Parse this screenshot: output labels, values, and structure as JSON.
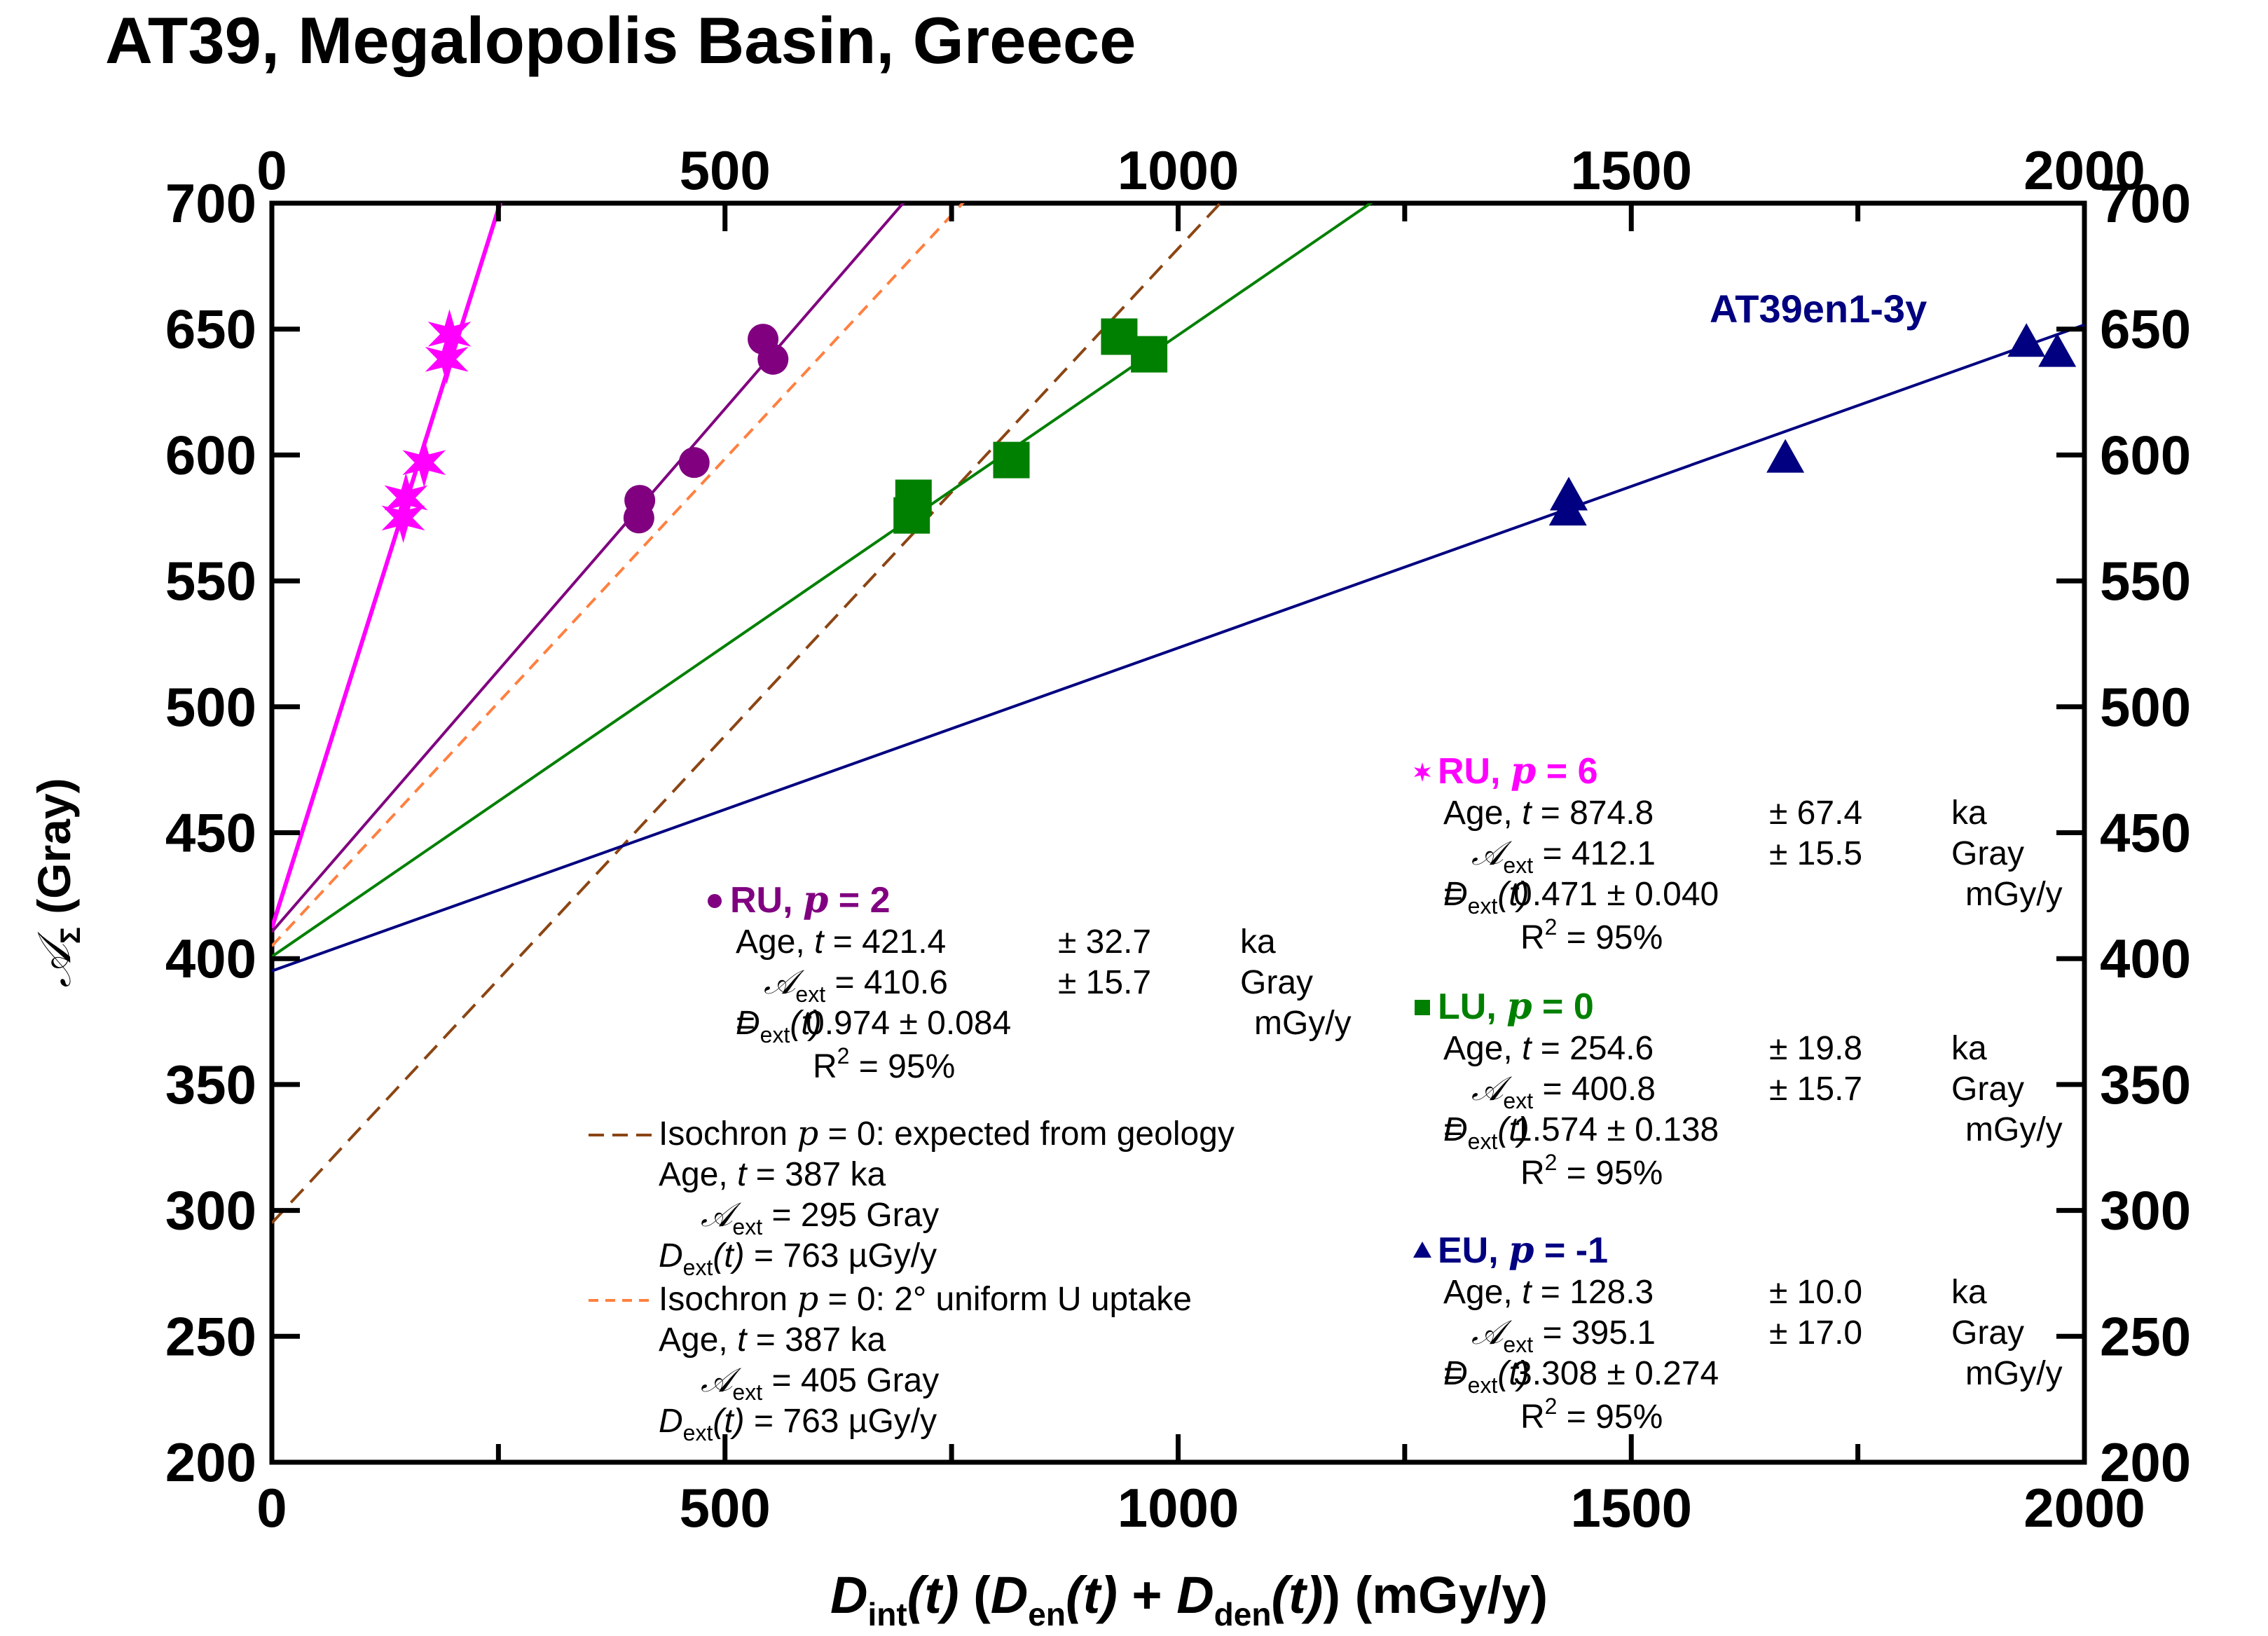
{
  "chart_data": {
    "type": "scatter",
    "title": "AT39,  Megalopolis Basin, Greece",
    "xlabel": {
      "d1": "D",
      "d1_sub": "int",
      "t1": "(t)",
      "open": "  (",
      "d2": "D",
      "d2_sub": "en",
      "t2": "(t)",
      "plus": " + ",
      "d3": "D",
      "d3_sub": "den",
      "t3": "(t)",
      "tail": ") (mGy/y)"
    },
    "ylabel": {
      "sym": "𝒜",
      "sub": "Σ",
      "text": " (Gray)"
    },
    "xlim": [
      0,
      2000
    ],
    "ylim": [
      200,
      700
    ],
    "x_ticks": [
      0,
      500,
      1000,
      1500,
      2000
    ],
    "y_ticks": [
      200,
      250,
      300,
      350,
      400,
      450,
      500,
      550,
      600,
      650,
      700
    ],
    "sample_label": "AT39en1-3y",
    "series": [
      {
        "name": "RU, p = 6",
        "model": "RU",
        "p": "6",
        "marker": "star",
        "color": "#ff00ff",
        "points": [
          [
            145,
            575
          ],
          [
            148,
            583
          ],
          [
            168,
            597
          ],
          [
            193,
            638
          ],
          [
            196,
            648
          ]
        ],
        "intercept": 412.1,
        "slope": 1.1426,
        "stats": {
          "age": "874.8",
          "age_err": "67.4",
          "age_unit": "ka",
          "aext": "412.1",
          "aext_err": "15.5",
          "aext_unit": "Gray",
          "dext": "0.471",
          "dext_err": "0.040",
          "dext_unit": "mGy/y",
          "r2": "95%"
        }
      },
      {
        "name": "RU, p = 2",
        "model": "RU",
        "p": "2",
        "marker": "circle",
        "color": "#800080",
        "points": [
          [
            405,
            575
          ],
          [
            406,
            582
          ],
          [
            466,
            597
          ],
          [
            542,
            646
          ],
          [
            553,
            638
          ]
        ],
        "intercept": 410.6,
        "slope": 0.4155,
        "stats": {
          "age": "421.4",
          "age_err": "32.7",
          "age_unit": "ka",
          "aext": "410.6",
          "aext_err": "15.7",
          "aext_unit": "Gray",
          "dext": "0.974",
          "dext_err": "0.084",
          "dext_unit": "mGy/y",
          "r2": "95%"
        }
      },
      {
        "name": "LU, p = 0",
        "model": "LU",
        "p": "0",
        "marker": "square",
        "color": "#008000",
        "points": [
          [
            706,
            576
          ],
          [
            708,
            583
          ],
          [
            816,
            598
          ],
          [
            935,
            647
          ],
          [
            968,
            640
          ]
        ],
        "intercept": 400.8,
        "slope": 0.2468,
        "stats": {
          "age": "254.6",
          "age_err": "19.8",
          "age_unit": "ka",
          "aext": "400.8",
          "aext_err": "15.7",
          "aext_unit": "Gray",
          "dext": "1.574",
          "dext_err": "0.138",
          "dext_unit": "mGy/y",
          "r2": "95%"
        }
      },
      {
        "name": "EU, p = -1",
        "model": "EU",
        "p": "-1",
        "marker": "triangle",
        "color": "#000080",
        "points": [
          [
            1430,
            577
          ],
          [
            1431,
            583
          ],
          [
            1670,
            598
          ],
          [
            1936,
            644
          ],
          [
            1970,
            640
          ]
        ],
        "intercept": 395.1,
        "slope": 0.1283,
        "stats": {
          "age": "128.3",
          "age_err": "10.0",
          "age_unit": "ka",
          "aext": "395.1",
          "aext_err": "17.0",
          "aext_unit": "Gray",
          "dext": "3.308",
          "dext_err": "0.274",
          "dext_unit": "mGy/y",
          "r2": "95%"
        }
      }
    ],
    "isochrons": [
      {
        "name": "Isochron p = 0: expected from geology",
        "text_pre": "Isochron ",
        "p_label": "p",
        "text_post": " = 0: expected from geology",
        "color": "#8b4513",
        "intercept": 295,
        "slope": 0.387,
        "age": "387 ka",
        "aext": "295 Gray",
        "dext": "763 µGy/y"
      },
      {
        "name": "Isochron p = 0: 2° uniform U uptake",
        "text_pre": "Isochron ",
        "p_label": "p",
        "text_post": " = 0: 2° uniform U uptake",
        "color": "#ff8040",
        "intercept": 405,
        "slope": 0.387,
        "age": "387 ka",
        "aext": "405 Gray",
        "dext": "763 µGy/y"
      }
    ],
    "labels": {
      "age": "Age, ",
      "t": "t",
      "aext_sym": "𝒜",
      "ext": "ext",
      "dext_sym": "D",
      "t_paren": "(t)",
      "r2": "R",
      "eq": "=",
      "pm": "±",
      "p": "p"
    }
  }
}
